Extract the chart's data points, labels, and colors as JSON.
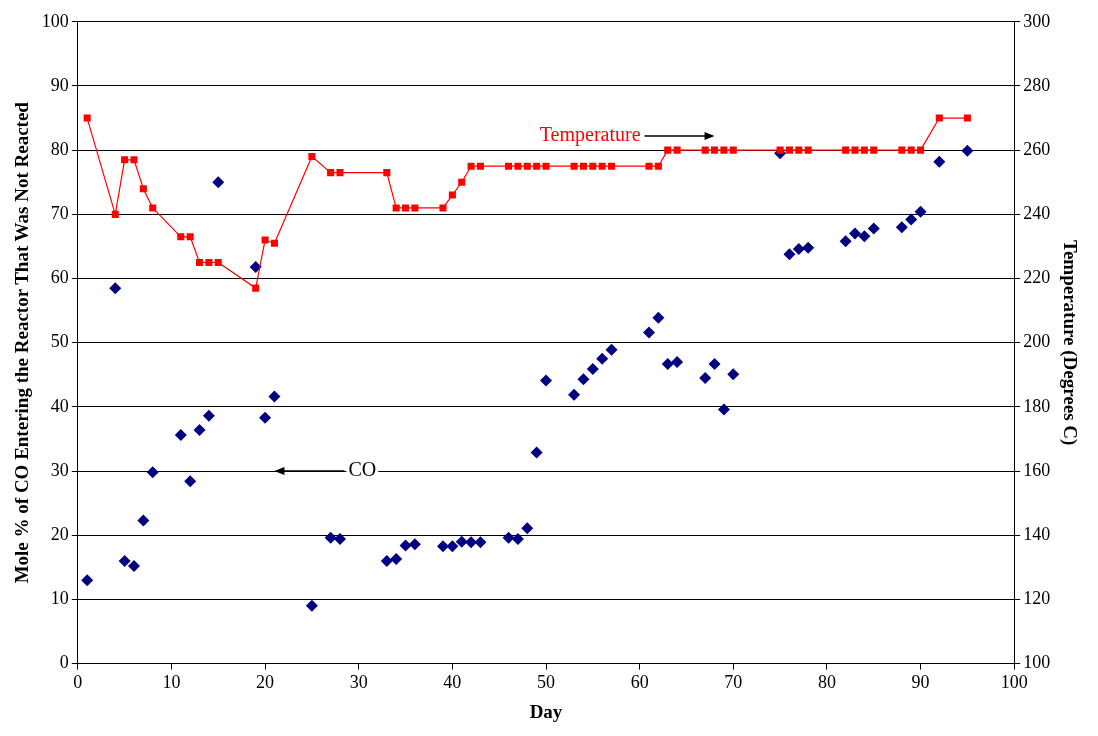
{
  "chart_data": {
    "type": "scatter",
    "xlabel": "Day",
    "ylabel": "Mole % of CO Entering the Reactor That Was Not Reacted",
    "y2label": "Temperature (Degrees C)",
    "xlim": [
      0,
      100
    ],
    "xticks": [
      0,
      10,
      20,
      30,
      40,
      50,
      60,
      70,
      80,
      90,
      100
    ],
    "ylim": [
      0,
      100
    ],
    "yticks": [
      0,
      10,
      20,
      30,
      40,
      50,
      60,
      70,
      80,
      90,
      100
    ],
    "y2lim": [
      100,
      300
    ],
    "y2ticks": [
      100,
      120,
      140,
      160,
      180,
      200,
      220,
      240,
      260,
      280,
      300
    ],
    "grid": "y",
    "legend": false,
    "annotations": [
      "Temperature",
      "CO"
    ],
    "series": [
      {
        "type": "scatter",
        "marker": "diamond",
        "color": "#000080",
        "x": [
          1,
          4,
          5,
          6,
          7,
          8,
          11,
          12,
          13,
          14,
          15,
          19,
          20,
          21,
          25,
          27,
          28,
          33,
          34,
          35,
          36,
          39,
          40,
          41,
          42,
          43,
          46,
          47,
          48,
          49,
          50,
          53,
          54,
          55,
          56,
          57,
          61,
          62,
          63,
          64,
          67,
          68,
          69,
          70,
          75,
          76,
          77,
          78,
          82,
          83,
          84,
          85,
          88,
          89,
          90,
          92,
          95
        ],
        "values": [
          13,
          58.5,
          16,
          15.2,
          22.3,
          29.8,
          35.6,
          28.4,
          36.4,
          38.6,
          75,
          61.8,
          38.3,
          41.6,
          9,
          19.6,
          19.4,
          16,
          16.3,
          18.4,
          18.6,
          18.3,
          18.3,
          19,
          18.9,
          18.9,
          19.6,
          19.4,
          21.1,
          32.9,
          44.1,
          41.9,
          44.3,
          45.9,
          47.5,
          48.9,
          51.6,
          53.9,
          46.7,
          47,
          44.5,
          46.7,
          39.6,
          45.1,
          79.5,
          63.8,
          64.6,
          64.8,
          65.8,
          67,
          66.6,
          67.8,
          68,
          69.2,
          70.4,
          78.2,
          79.9
        ]
      },
      {
        "type": "line",
        "axis": "y2",
        "marker": "square",
        "line_style": "solid",
        "color": "#ff0000",
        "x": [
          1,
          4,
          5,
          6,
          7,
          8,
          11,
          12,
          13,
          14,
          15,
          19,
          20,
          21,
          25,
          27,
          28,
          33,
          34,
          35,
          36,
          39,
          40,
          41,
          42,
          43,
          46,
          47,
          48,
          49,
          50,
          53,
          54,
          55,
          56,
          57,
          61,
          62,
          63,
          64,
          67,
          68,
          69,
          70,
          75,
          76,
          77,
          78,
          82,
          83,
          84,
          85,
          88,
          89,
          90,
          92,
          95
        ],
        "values": [
          270,
          240,
          257,
          257,
          248,
          242,
          233,
          233,
          225,
          225,
          225,
          217,
          232,
          231,
          258,
          253,
          253,
          253,
          242,
          242,
          242,
          242,
          246,
          250,
          255,
          255,
          255,
          255,
          255,
          255,
          255,
          255,
          255,
          255,
          255,
          255,
          255,
          255,
          260,
          260,
          260,
          260,
          260,
          260,
          260,
          260,
          260,
          260,
          260,
          260,
          260,
          260,
          260,
          260,
          260,
          270,
          270
        ]
      }
    ]
  }
}
